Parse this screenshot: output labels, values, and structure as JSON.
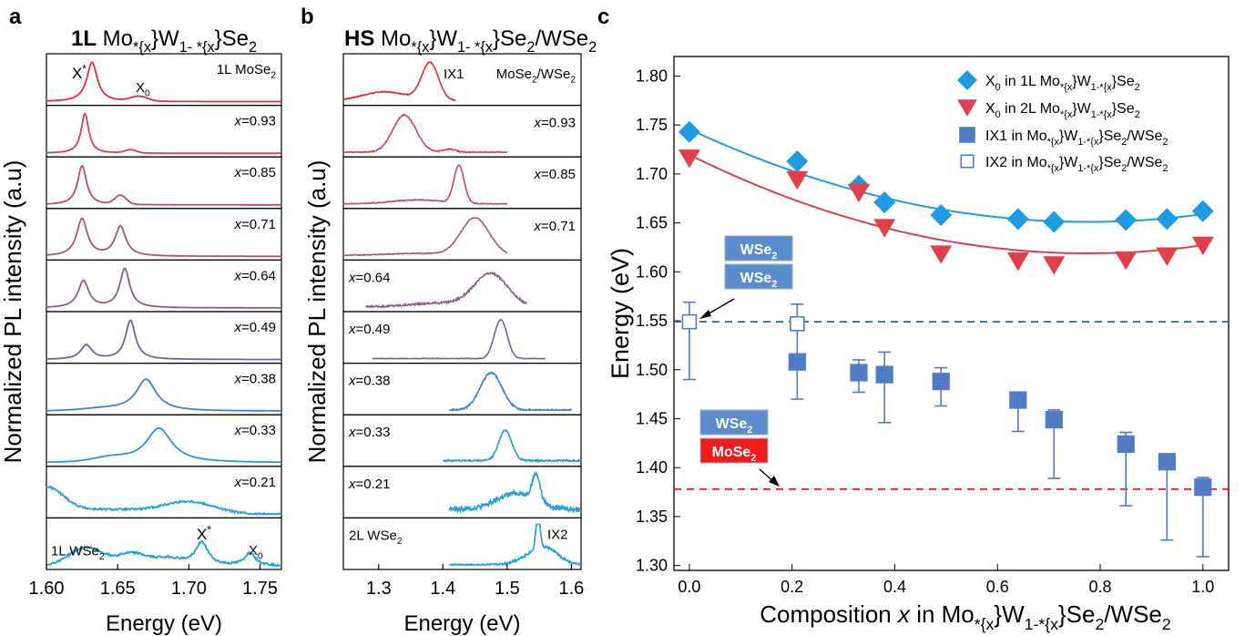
{
  "panel_a": {
    "letter": "a",
    "title_bold": "1L",
    "title_rest": "MoxW1-xSe2",
    "ylabel": "Normalized PL intensity (a.u)",
    "xlabel": "Energy (eV)",
    "xticks": [
      "1.60",
      "1.65",
      "1.70",
      "1.75"
    ],
    "colors": [
      "#e0313a",
      "#d5405a",
      "#c24a66",
      "#a9557a",
      "#8d5c8c",
      "#6e669c",
      "#3f82c8",
      "#2a97d9",
      "#269fdc",
      "#1d9fe0"
    ],
    "traces": [
      {
        "label": "1L MoSe2",
        "peaks": "X*, X0"
      },
      {
        "label": "x=0.93"
      },
      {
        "label": "x=0.85"
      },
      {
        "label": "x=0.71"
      },
      {
        "label": "x=0.64"
      },
      {
        "label": "x=0.49"
      },
      {
        "label": "x=0.38"
      },
      {
        "label": "x=0.33"
      },
      {
        "label": "x=0.21"
      },
      {
        "label": "1L WSe2",
        "peaks": "X*, X0"
      }
    ]
  },
  "panel_b": {
    "letter": "b",
    "title_bold": "HS",
    "title_rest": "MoxW1-xSe2/WSe2",
    "ylabel": "Normalized PL intensity (a.u)",
    "xlabel": "Energy (eV)",
    "xticks": [
      "1.3",
      "1.4",
      "1.5",
      "1.6"
    ],
    "traces": [
      {
        "label": "MoSe2/WSe2",
        "peak": "IX1"
      },
      {
        "label": "x=0.93"
      },
      {
        "label": "x=0.85"
      },
      {
        "label": "x=0.71"
      },
      {
        "label": "x=0.64"
      },
      {
        "label": "x=0.49"
      },
      {
        "label": "x=0.38"
      },
      {
        "label": "x=0.33"
      },
      {
        "label": "x=0.21"
      },
      {
        "label": "2L WSe2",
        "peak": "IX2"
      }
    ]
  },
  "panel_c": {
    "letter": "c",
    "legend": [
      "X0 in 1L MoxW1-xSe2",
      "X0 in 2L MoxW1-xSe2",
      "IX1 in MoxW1-xSe2/WSe2",
      "IX2 in MoxW1-xSe2/WSe2"
    ],
    "band_labels": {
      "wse2": "WSe2",
      "mose2": "MoSe2"
    }
  },
  "chart_data": [
    {
      "type": "line",
      "title": "1L MoxW1-xSe2",
      "xlabel": "Energy (eV)",
      "ylabel": "Normalized PL intensity (a.u)",
      "xlim": [
        1.6,
        1.765
      ],
      "series": [
        {
          "name": "1L MoSe2",
          "peaks_eV": [
            1.632,
            1.665
          ]
        },
        {
          "name": "x=0.93",
          "peaks_eV": [
            1.627,
            1.659
          ]
        },
        {
          "name": "x=0.85",
          "peaks_eV": [
            1.625,
            1.652
          ]
        },
        {
          "name": "x=0.71",
          "peaks_eV": [
            1.625,
            1.652
          ]
        },
        {
          "name": "x=0.64",
          "peaks_eV": [
            1.626,
            1.655
          ]
        },
        {
          "name": "x=0.49",
          "peaks_eV": [
            1.628,
            1.659
          ]
        },
        {
          "name": "x=0.38",
          "peaks_eV": [
            1.67
          ]
        },
        {
          "name": "x=0.33",
          "peaks_eV": [
            1.679
          ]
        },
        {
          "name": "x=0.21",
          "peaks_eV": [
            1.603,
            1.7
          ]
        },
        {
          "name": "1L WSe2",
          "peaks_eV": [
            1.636,
            1.709,
            1.743
          ]
        }
      ]
    },
    {
      "type": "line",
      "title": "HS MoxW1-xSe2/WSe2",
      "xlabel": "Energy (eV)",
      "ylabel": "Normalized PL intensity (a.u)",
      "xlim": [
        1.245,
        1.615
      ],
      "series": [
        {
          "name": "MoSe2/WSe2",
          "peaks_eV": [
            1.38
          ]
        },
        {
          "name": "x=0.93",
          "peaks_eV": [
            1.34
          ]
        },
        {
          "name": "x=0.85",
          "peaks_eV": [
            1.425
          ]
        },
        {
          "name": "x=0.71",
          "peaks_eV": [
            1.45
          ]
        },
        {
          "name": "x=0.64",
          "peaks_eV": [
            1.475
          ]
        },
        {
          "name": "x=0.49",
          "peaks_eV": [
            1.49
          ]
        },
        {
          "name": "x=0.38",
          "peaks_eV": [
            1.475
          ]
        },
        {
          "name": "x=0.33",
          "peaks_eV": [
            1.497
          ]
        },
        {
          "name": "x=0.21",
          "peaks_eV": [
            1.545
          ]
        },
        {
          "name": "2L WSe2",
          "peaks_eV": [
            1.548
          ]
        }
      ]
    },
    {
      "type": "scatter",
      "xlabel": "Composition x in MoxW1-xSe2/WSe2",
      "ylabel": "Energy (eV)",
      "xlim": [
        -0.03,
        1.05
      ],
      "ylim": [
        1.295,
        1.82
      ],
      "xticks": [
        0.0,
        0.2,
        0.4,
        0.6,
        0.8,
        1.0
      ],
      "yticks": [
        1.3,
        1.35,
        1.4,
        1.45,
        1.5,
        1.55,
        1.6,
        1.65,
        1.7,
        1.75,
        1.8
      ],
      "grid": false,
      "legend_position": "top-right",
      "series": [
        {
          "name": "X0 in 1L MoxW1-xSe2",
          "marker": "diamond",
          "color": "#1e9be3",
          "x": [
            0.0,
            0.21,
            0.33,
            0.38,
            0.49,
            0.64,
            0.71,
            0.85,
            0.93,
            1.0
          ],
          "y": [
            1.743,
            1.713,
            1.688,
            1.671,
            1.658,
            1.654,
            1.651,
            1.653,
            1.654,
            1.662
          ],
          "fit": [
            [
              0.0,
              1.745
            ],
            [
              0.2,
              1.705
            ],
            [
              0.4,
              1.672
            ],
            [
              0.6,
              1.656
            ],
            [
              0.8,
              1.651
            ],
            [
              1.0,
              1.659
            ]
          ]
        },
        {
          "name": "X0 in 2L MoxW1-xSe2",
          "marker": "triangle-down",
          "color": "#e0404c",
          "x": [
            0.0,
            0.21,
            0.33,
            0.38,
            0.49,
            0.64,
            0.71,
            0.85,
            0.93,
            1.0
          ],
          "y": [
            1.716,
            1.694,
            1.681,
            1.645,
            1.618,
            1.611,
            1.607,
            1.612,
            1.616,
            1.627
          ],
          "fit": [
            [
              0.0,
              1.72
            ],
            [
              0.2,
              1.675
            ],
            [
              0.4,
              1.64
            ],
            [
              0.6,
              1.625
            ],
            [
              0.8,
              1.621
            ],
            [
              1.0,
              1.626
            ]
          ]
        },
        {
          "name": "IX1 in MoxW1-xSe2/WSe2",
          "marker": "square",
          "color": "#4f7cc5",
          "x": [
            0.21,
            0.33,
            0.38,
            0.49,
            0.64,
            0.71,
            0.85,
            0.93,
            1.0
          ],
          "y": [
            1.508,
            1.497,
            1.495,
            1.488,
            1.469,
            1.449,
            1.424,
            1.406,
            1.38
          ],
          "err_upper": [
            1.508,
            1.51,
            1.518,
            1.502,
            1.469,
            1.459,
            1.436,
            1.406,
            1.39
          ],
          "err_lower": [
            1.47,
            1.477,
            1.446,
            1.463,
            1.437,
            1.389,
            1.361,
            1.326,
            1.309
          ]
        },
        {
          "name": "IX2 in MoxW1-xSe2/WSe2",
          "marker": "open-square",
          "color": "#4f7cc5",
          "x": [
            0.0,
            0.21
          ],
          "y": [
            1.549,
            1.547
          ],
          "err_upper": [
            1.569,
            1.567
          ],
          "err_lower": [
            1.49,
            1.502
          ]
        }
      ],
      "reference_lines": [
        {
          "y": 1.549,
          "color": "#2a6496",
          "style": "dashed"
        },
        {
          "y": 1.378,
          "color": "#e02020",
          "style": "dashed"
        }
      ]
    }
  ]
}
